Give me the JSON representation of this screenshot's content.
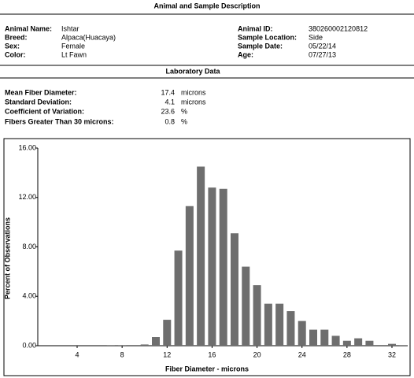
{
  "header": {
    "title": "Animal and Sample Description"
  },
  "animal": {
    "left": [
      {
        "label": "Animal Name:",
        "value": "Ishtar"
      },
      {
        "label": "Breed:",
        "value": "Alpaca(Huacaya)"
      },
      {
        "label": "Sex:",
        "value": "Female"
      },
      {
        "label": "Color:",
        "value": "Lt Fawn"
      }
    ],
    "right": [
      {
        "label": "Animal ID:",
        "value": "380260002120812"
      },
      {
        "label": "Sample Location:",
        "value": "Side"
      },
      {
        "label": "Sample Date:",
        "value": "05/22/14"
      },
      {
        "label": "Age:",
        "value": "07/27/13"
      }
    ]
  },
  "lab": {
    "title": "Laboratory Data",
    "rows": [
      {
        "label": "Mean Fiber Diameter:",
        "value": 17.4,
        "unit": "microns"
      },
      {
        "label": "Standard Deviation:",
        "value": 4.1,
        "unit": "microns"
      },
      {
        "label": "Coefficient of Variation:",
        "value": 23.6,
        "unit": "%"
      },
      {
        "label": "Fibers Greater Than 30 microns:",
        "value": 0.8,
        "unit": "%"
      }
    ]
  },
  "chart_data": {
    "type": "bar",
    "x_label": "Fiber Diameter - microns",
    "y_label": "Percent of Observations",
    "x": [
      7,
      8,
      9,
      10,
      11,
      12,
      13,
      14,
      15,
      16,
      17,
      18,
      19,
      20,
      21,
      22,
      23,
      24,
      25,
      26,
      27,
      28,
      29,
      30,
      31,
      32,
      33
    ],
    "values": [
      0.05,
      0.05,
      0,
      0.1,
      0.7,
      2.1,
      7.7,
      11.3,
      14.5,
      12.8,
      12.7,
      9.1,
      6.4,
      4.9,
      3.4,
      3.4,
      2.8,
      2.0,
      1.3,
      1.3,
      0.8,
      0.4,
      0.6,
      0.4,
      0,
      0.15,
      0.05
    ],
    "color": "#6e6e6e",
    "xlim": [
      0.5,
      33.4
    ],
    "xticks": [
      4,
      8,
      12,
      16,
      20,
      24,
      28,
      32
    ],
    "ylim": [
      0,
      16
    ],
    "yticks": [
      {
        "value": 0,
        "label": "0.00"
      },
      {
        "value": 4,
        "label": "4.00"
      },
      {
        "value": 8,
        "label": "8.00"
      },
      {
        "value": 12,
        "label": "12.00"
      },
      {
        "value": 16,
        "label": "16.00"
      }
    ]
  }
}
